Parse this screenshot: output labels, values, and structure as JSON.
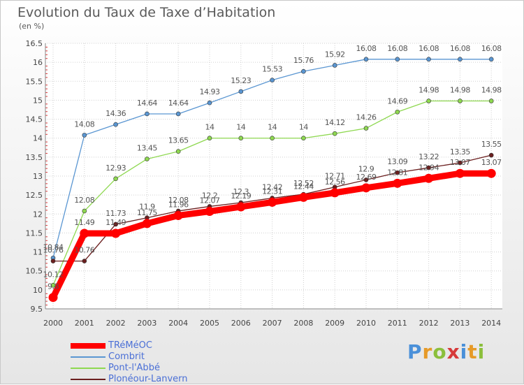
{
  "title": "Evolution du Taux de Taxe d’Habitation",
  "subtitle": "(en %)",
  "logo": {
    "text": "Proxiti",
    "letters": [
      "P",
      "r",
      "o",
      "x",
      "i",
      "t",
      "i"
    ],
    "colors": [
      "#4a90d9",
      "#e69a28",
      "#8bbf3c",
      "#d63a3a",
      "#4a90d9",
      "#e69a28",
      "#8bbf3c"
    ]
  },
  "chart_data": {
    "type": "line",
    "x": [
      "2000",
      "2001",
      "2002",
      "2003",
      "2004",
      "2005",
      "2006",
      "2007",
      "2008",
      "2009",
      "2010",
      "2011",
      "2012",
      "2013",
      "2014"
    ],
    "ylim": [
      9.5,
      16.5
    ],
    "yticks": [
      "9.5",
      "10",
      "10.5",
      "11",
      "11.5",
      "12",
      "12.5",
      "13",
      "13.5",
      "14",
      "14.5",
      "15",
      "15.5",
      "16",
      "16.5"
    ],
    "grid": true,
    "legend": "bottom-left",
    "series": [
      {
        "name": "TRéMéOC",
        "color": "#ff0000",
        "values": [
          9.8,
          11.49,
          11.49,
          11.75,
          11.96,
          12.07,
          12.19,
          12.31,
          12.44,
          12.56,
          12.69,
          12.81,
          12.94,
          13.07,
          13.07
        ],
        "labels": [
          "9.8",
          "11.49",
          "11.49",
          "11.75",
          "11.96",
          "12.07",
          "12.19",
          "12.31",
          "12.44",
          "12.56",
          "12.69",
          "12.81",
          "12.94",
          "13.07",
          "13.07"
        ]
      },
      {
        "name": "Combrit",
        "color": "#5a96d2",
        "values": [
          10.84,
          14.08,
          14.36,
          14.64,
          14.64,
          14.93,
          15.23,
          15.53,
          15.76,
          15.92,
          16.08,
          16.08,
          16.08,
          16.08,
          16.08
        ],
        "labels": [
          "10.84",
          "14.08",
          "14.36",
          "14.64",
          "14.64",
          "14.93",
          "15.23",
          "15.53",
          "15.76",
          "15.92",
          "16.08",
          "16.08",
          "16.08",
          "16.08",
          "16.08"
        ]
      },
      {
        "name": "Pont-l'Abbé",
        "color": "#8ed850",
        "values": [
          10.12,
          12.08,
          12.93,
          13.45,
          13.65,
          14,
          14,
          14,
          14,
          14.12,
          14.26,
          14.69,
          14.98,
          14.98,
          14.98
        ],
        "labels": [
          "10.12",
          "12.08",
          "12.93",
          "13.45",
          "13.65",
          "14",
          "14",
          "14",
          "14",
          "14.12",
          "14.26",
          "14.69",
          "14.98",
          "14.98",
          "14.98"
        ]
      },
      {
        "name": "Plonéour-Lanvern",
        "color": "#6b1f1f",
        "values": [
          10.76,
          10.76,
          11.73,
          11.9,
          12.08,
          12.2,
          12.3,
          12.42,
          12.52,
          12.71,
          12.9,
          13.09,
          13.22,
          13.35,
          13.55
        ],
        "labels": [
          "10.76",
          "10.76",
          "11.73",
          "11.9",
          "12.08",
          "12.2",
          "12.3",
          "12.42",
          "12.52",
          "12.71",
          "12.9",
          "13.09",
          "13.22",
          "13.35",
          "13.55"
        ]
      }
    ]
  }
}
